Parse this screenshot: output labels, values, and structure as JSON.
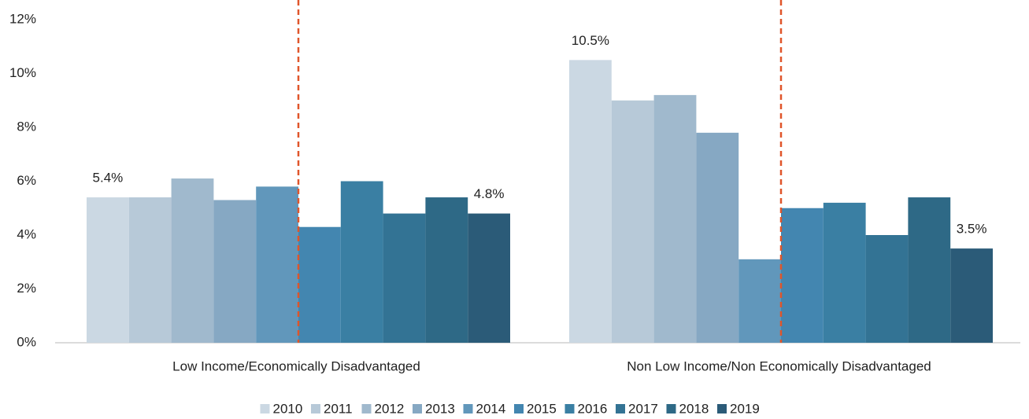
{
  "chart_data": {
    "type": "bar",
    "categories": [
      "Low Income/Economically Disadvantaged",
      "Non Low Income/Non Economically Disadvantaged"
    ],
    "series": [
      {
        "name": "2010",
        "color": "#cbd8e3",
        "values": [
          5.4,
          10.5
        ],
        "value_labels": [
          "5.4%",
          "10.5%"
        ]
      },
      {
        "name": "2011",
        "color": "#b7c9d8",
        "values": [
          5.4,
          9.0
        ]
      },
      {
        "name": "2012",
        "color": "#a0b9cd",
        "values": [
          6.1,
          9.2
        ]
      },
      {
        "name": "2013",
        "color": "#86a8c3",
        "values": [
          5.3,
          7.8
        ]
      },
      {
        "name": "2014",
        "color": "#6197bb",
        "values": [
          5.8,
          3.1
        ]
      },
      {
        "name": "2015",
        "color": "#4386b0",
        "values": [
          4.3,
          5.0
        ]
      },
      {
        "name": "2016",
        "color": "#3a7fa3",
        "values": [
          6.0,
          5.2
        ]
      },
      {
        "name": "2017",
        "color": "#337394",
        "values": [
          4.8,
          4.0
        ]
      },
      {
        "name": "2018",
        "color": "#2e6986",
        "values": [
          5.4,
          5.4
        ]
      },
      {
        "name": "2019",
        "color": "#2b5b78",
        "values": [
          4.8,
          3.5
        ],
        "value_labels": [
          "4.8%",
          "3.5%"
        ]
      }
    ],
    "ylim": [
      0,
      12
    ],
    "yticks": [
      {
        "value": 0,
        "label": "0%"
      },
      {
        "value": 2,
        "label": "2%"
      },
      {
        "value": 4,
        "label": "4%"
      },
      {
        "value": 6,
        "label": "6%"
      },
      {
        "value": 8,
        "label": "8%"
      },
      {
        "value": 10,
        "label": "10%"
      },
      {
        "value": 12,
        "label": "12%"
      }
    ],
    "grid": false,
    "legend": "bottom"
  }
}
